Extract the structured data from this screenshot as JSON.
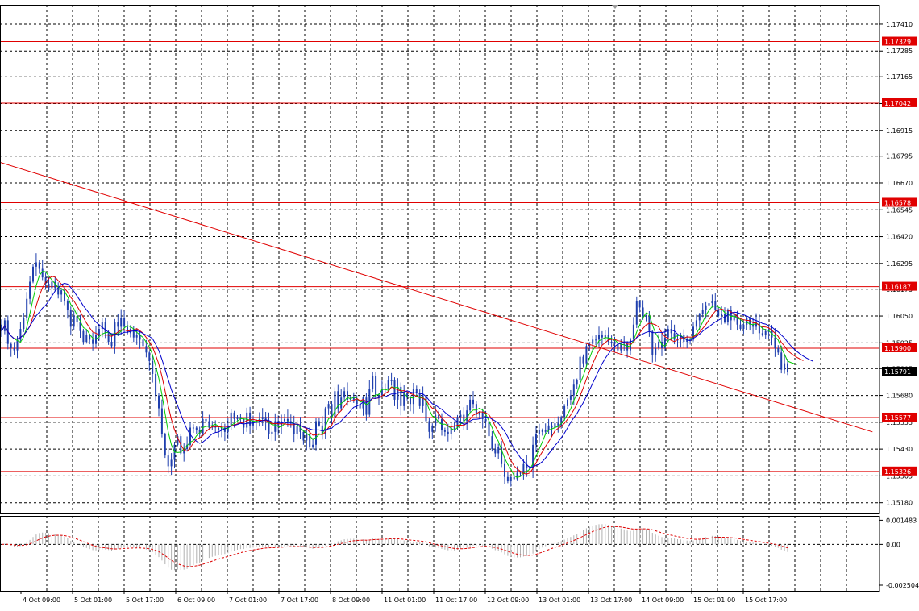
{
  "chart_data": {
    "type": "candlestick",
    "instrument_price_axis": {
      "ticks": [
        "1.17410",
        "1.17285",
        "1.17165",
        "1.17040",
        "1.16915",
        "1.16795",
        "1.16670",
        "1.16545",
        "1.16420",
        "1.16295",
        "1.16175",
        "1.16050",
        "1.15925",
        "1.15805",
        "1.15680",
        "1.15555",
        "1.15430",
        "1.15305",
        "1.15180"
      ],
      "tick_values": [
        1.1741,
        1.17285,
        1.17165,
        1.1704,
        1.16915,
        1.16795,
        1.1667,
        1.16545,
        1.1642,
        1.16295,
        1.16175,
        1.1605,
        1.15925,
        1.15805,
        1.1568,
        1.15555,
        1.1543,
        1.15305,
        1.1518
      ],
      "ylim": [
        1.1513,
        1.175
      ]
    },
    "x_tick_labels": [
      "4 Oct 09:00",
      "5 Oct 01:00",
      "5 Oct 17:00",
      "6 Oct 09:00",
      "7 Oct 01:00",
      "7 Oct 17:00",
      "8 Oct 09:00",
      "11 Oct 01:00",
      "11 Oct 17:00",
      "12 Oct 09:00",
      "13 Oct 01:00",
      "13 Oct 17:00",
      "14 Oct 09:00",
      "15 Oct 01:00",
      "15 Oct 17:00"
    ],
    "horizontal_levels": [
      {
        "label": "1.17329",
        "value": 1.17329
      },
      {
        "label": "1.17042",
        "value": 1.17042
      },
      {
        "label": "1.16578",
        "value": 1.16578
      },
      {
        "label": "1.16187",
        "value": 1.16187
      },
      {
        "label": "1.15900",
        "value": 1.159
      },
      {
        "label": "1.15577",
        "value": 1.15577
      },
      {
        "label": "1.15326",
        "value": 1.15326
      }
    ],
    "current_price": {
      "label": "1.15791",
      "value": 1.15791
    },
    "trendline": {
      "from_index": -8,
      "from_value": 1.168,
      "to_index": 277,
      "to_value": 1.1551
    },
    "candles_close": [
      1.1598,
      1.1603,
      1.1592,
      1.159,
      1.1589,
      1.1594,
      1.1599,
      1.1604,
      1.1613,
      1.1621,
      1.1628,
      1.163,
      1.1627,
      1.1623,
      1.162,
      1.1618,
      1.1621,
      1.1618,
      1.1615,
      1.1617,
      1.1612,
      1.1608,
      1.16,
      1.1605,
      1.1602,
      1.1598,
      1.1593,
      1.1596,
      1.1594,
      1.1592,
      1.1596,
      1.1599,
      1.1602,
      1.1597,
      1.1593,
      1.1591,
      1.1602,
      1.16,
      1.1604,
      1.16,
      1.1597,
      1.1599,
      1.1595,
      1.1596,
      1.1594,
      1.1591,
      1.1588,
      1.1584,
      1.1578,
      1.1568,
      1.1562,
      1.155,
      1.154,
      1.1535,
      1.1538,
      1.1545,
      1.1549,
      1.1541,
      1.1543,
      1.1545,
      1.1553,
      1.1553,
      1.1552,
      1.155,
      1.1557,
      1.1556,
      1.1553,
      1.1554,
      1.1553,
      1.1552,
      1.1553,
      1.1551,
      1.1554,
      1.156,
      1.1557,
      1.1558,
      1.1557,
      1.1553,
      1.156,
      1.1554,
      1.1556,
      1.1556,
      1.1557,
      1.1558,
      1.1556,
      1.155,
      1.1551,
      1.1556,
      1.1554,
      1.1556,
      1.1557,
      1.1556,
      1.1555,
      1.155,
      1.1554,
      1.1551,
      1.1547,
      1.155,
      1.1544,
      1.1545,
      1.1556,
      1.1554,
      1.155,
      1.1562,
      1.1564,
      1.1558,
      1.157,
      1.1562,
      1.1567,
      1.157,
      1.1566,
      1.1567,
      1.1566,
      1.1564,
      1.1562,
      1.1567,
      1.1559,
      1.1571,
      1.1577,
      1.1567,
      1.1568,
      1.1571,
      1.1571,
      1.1575,
      1.1575,
      1.1566,
      1.1572,
      1.1563,
      1.1569,
      1.1567,
      1.1564,
      1.1571,
      1.1569,
      1.1563,
      1.1568,
      1.1556,
      1.1551,
      1.1554,
      1.1559,
      1.1557,
      1.1552,
      1.1551,
      1.155,
      1.1553,
      1.1553,
      1.1558,
      1.1559,
      1.1556,
      1.1561,
      1.1566,
      1.1564,
      1.1559,
      1.156,
      1.1557,
      1.1556,
      1.1549,
      1.1543,
      1.1541,
      1.1544,
      1.1536,
      1.153,
      1.1528,
      1.153,
      1.1529,
      1.1532,
      1.1532,
      1.1536,
      1.1534,
      1.1534,
      1.1545,
      1.155,
      1.1552,
      1.1551,
      1.1552,
      1.1554,
      1.1553,
      1.1555,
      1.1554,
      1.1558,
      1.1563,
      1.1566,
      1.1568,
      1.1573,
      1.1575,
      1.1586,
      1.1583,
      1.1591,
      1.1592,
      1.1594,
      1.1594,
      1.1596,
      1.1595,
      1.1596,
      1.1593,
      1.1593,
      1.1592,
      1.1589,
      1.1592,
      1.1592,
      1.1589,
      1.1594,
      1.1601,
      1.1612,
      1.1609,
      1.1605,
      1.1605,
      1.1598,
      1.1587,
      1.159,
      1.1593,
      1.159,
      1.1595,
      1.1599,
      1.1597,
      1.1594,
      1.1594,
      1.1596,
      1.1593,
      1.1594,
      1.1594,
      1.16,
      1.1603,
      1.1606,
      1.1608,
      1.161,
      1.1611,
      1.1612,
      1.1608,
      1.1605,
      1.1606,
      1.1602,
      1.1608,
      1.1603,
      1.1606,
      1.1601,
      1.1599,
      1.1601,
      1.1604,
      1.1601,
      1.16,
      1.1602,
      1.1597,
      1.1596,
      1.1598,
      1.1598,
      1.1595,
      1.159,
      1.1588,
      1.158,
      1.1583,
      1.1579
    ],
    "moving_average_colors": {
      "fast": "#00cc00",
      "medium": "#dd0000",
      "slow": "#0000cc"
    },
    "candle_color": "#1f3fae",
    "level_color": "#e00000",
    "oscillator": {
      "ticks": [
        "0.001483",
        "0.00",
        "-0.002504"
      ],
      "tick_values": [
        0.001483,
        0.0,
        -0.002504
      ],
      "ylim": [
        -0.00285,
        0.00175
      ]
    }
  }
}
